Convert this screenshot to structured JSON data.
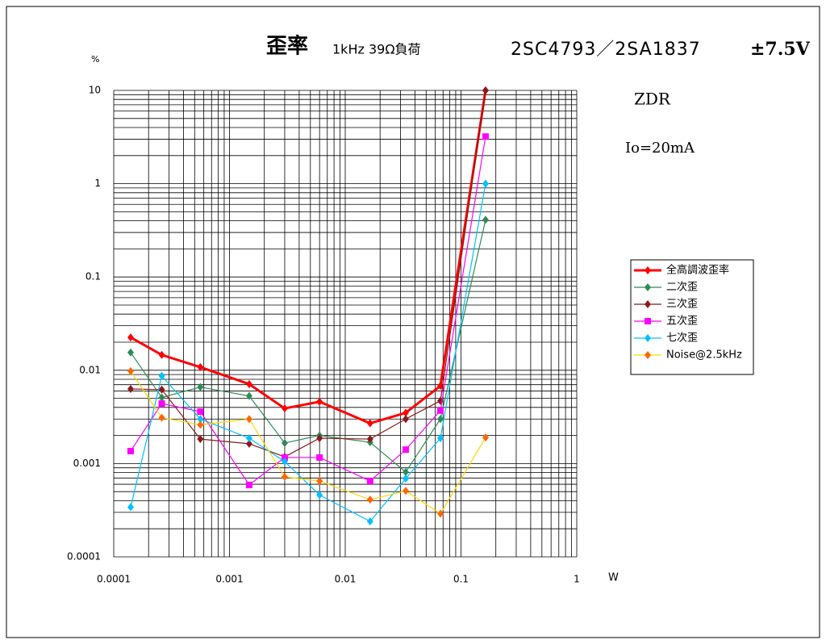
{
  "chart_data": {
    "type": "line",
    "title": "歪率",
    "subtitle": "1kHz 39Ω負荷",
    "annotations": [
      "2SC4793／2SA1837",
      "±7.5V",
      "ZDR",
      "Io=20mA"
    ],
    "y_label": "%",
    "x_label": "W",
    "xscale": "log",
    "yscale": "log",
    "grid": true,
    "xlim": [
      0.0001,
      1
    ],
    "xticks": [
      0.0001,
      0.001,
      0.01,
      0.1,
      1
    ],
    "ylim": [
      0.0001,
      10
    ],
    "yticks": [
      0.0001,
      0.001,
      0.01,
      0.1,
      1,
      10
    ],
    "x": [
      0.00014,
      0.00026,
      0.00056,
      0.00148,
      0.003,
      0.006,
      0.0164,
      0.0333,
      0.0664,
      0.163
    ],
    "legend": "right",
    "series": [
      {
        "name": "全高調波歪率",
        "color": "#ff0000",
        "marker": "diamond",
        "marker_color": "#ff0000",
        "values": [
          0.0225,
          0.0146,
          0.0108,
          0.0071,
          0.0039,
          0.0046,
          0.0027,
          0.0035,
          0.0068,
          10
        ]
      },
      {
        "name": "二次歪",
        "color": "#2e8b57",
        "marker": "diamond",
        "marker_color": "#2e8b57",
        "values": [
          0.0155,
          0.0051,
          0.0066,
          0.0053,
          0.00166,
          0.002,
          0.00169,
          0.00081,
          0.003,
          0.41
        ]
      },
      {
        "name": "三次歪",
        "color": "#8b1a1a",
        "marker": "diamond",
        "marker_color": "#8b1a1a",
        "values": [
          0.0063,
          0.0062,
          0.00183,
          0.00163,
          0.00118,
          0.00187,
          0.00183,
          0.003,
          0.0047,
          10
        ]
      },
      {
        "name": "五次歪",
        "color": "#ff00ff",
        "marker": "square",
        "marker_color": "#ff00ff",
        "values": [
          0.00136,
          0.0044,
          0.0036,
          0.00059,
          0.00116,
          0.00116,
          0.00065,
          0.00141,
          0.0037,
          3.2
        ]
      },
      {
        "name": "七次歪",
        "color": "#00c0ff",
        "marker": "diamond",
        "marker_color": "#00c0ff",
        "values": [
          0.00034,
          0.0087,
          0.003,
          0.00187,
          0.00105,
          0.00046,
          0.00024,
          0.00069,
          0.00187,
          1
        ]
      },
      {
        "name": "Noise@2.5kHz",
        "color": "#ffd700",
        "marker": "diamond",
        "marker_color": "#ff6600",
        "values": [
          0.0098,
          0.0031,
          0.0026,
          0.003,
          0.00072,
          0.00065,
          0.00041,
          0.00051,
          0.00029,
          0.0019
        ]
      }
    ]
  }
}
